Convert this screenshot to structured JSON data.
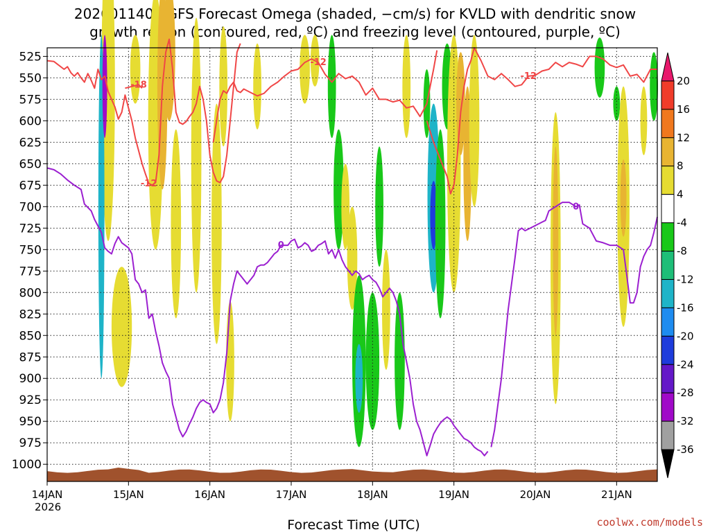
{
  "chart_data": {
    "type": "time-height cross section",
    "title_line1": "2026011400 GFS Forecast Omega (shaded, −cm/s) for KVLD with dendritic snow",
    "title_line2": "growth region (contoured, red, ºC) and freezing level (contoured, purple, ºC)",
    "xlabel": "Forecast Time (UTC)",
    "xlabel_year": "2026",
    "credit": "coolwx.com/models",
    "x_range_hours": [
      0,
      180
    ],
    "x_ticks": [
      {
        "label": "14JAN",
        "hour": 0
      },
      {
        "label": "15JAN",
        "hour": 24
      },
      {
        "label": "16JAN",
        "hour": 48
      },
      {
        "label": "17JAN",
        "hour": 72
      },
      {
        "label": "18JAN",
        "hour": 96
      },
      {
        "label": "19JAN",
        "hour": 120
      },
      {
        "label": "20JAN",
        "hour": 144
      },
      {
        "label": "21JAN",
        "hour": 168
      }
    ],
    "y_axis_hpa": {
      "top": 515,
      "bottom": 1020,
      "ticks": [
        "525",
        "550",
        "575",
        "600",
        "625",
        "650",
        "675",
        "700",
        "725",
        "750",
        "775",
        "800",
        "825",
        "850",
        "875",
        "900",
        "925",
        "950",
        "975",
        "1000"
      ]
    },
    "colorbar": {
      "labels": [
        "20",
        "16",
        "12",
        "8",
        "4",
        "-4",
        "-8",
        "-12",
        "-16",
        "-20",
        "-24",
        "-28",
        "-32",
        "-36"
      ],
      "colors": [
        "#e8196c",
        "#f03c2a",
        "#f0781e",
        "#e8b432",
        "#e6dc32",
        "#ffffff",
        "#19c819",
        "#1ebe78",
        "#1eb4c8",
        "#1e8cf0",
        "#1e3cdc",
        "#6418c8",
        "#a00ac8",
        "#a0a0a0",
        "#000000"
      ]
    },
    "series": [
      {
        "name": "dendritic growth -12C isotherm",
        "color": "#f04646",
        "label": "-12",
        "points": [
          [
            0,
            530
          ],
          [
            2,
            531
          ],
          [
            3,
            534
          ],
          [
            5,
            540
          ],
          [
            6,
            537
          ],
          [
            7,
            544
          ],
          [
            8,
            548
          ],
          [
            9,
            544
          ],
          [
            10,
            550
          ],
          [
            11,
            555
          ],
          [
            12,
            545
          ],
          [
            13,
            553
          ],
          [
            14,
            562
          ],
          [
            15,
            540
          ],
          [
            16,
            552
          ],
          [
            17,
            548
          ],
          [
            18,
            566
          ],
          [
            19,
            575
          ],
          [
            20,
            584
          ],
          [
            21,
            598
          ],
          [
            22,
            590
          ],
          [
            23,
            570
          ],
          [
            24,
            585
          ],
          [
            25,
            600
          ],
          [
            26,
            620
          ],
          [
            27,
            635
          ],
          [
            28,
            650
          ],
          [
            29,
            662
          ],
          [
            30,
            673
          ],
          [
            31,
            675
          ],
          [
            32,
            672
          ],
          [
            33,
            640
          ],
          [
            34,
            560
          ],
          [
            35,
            520
          ],
          [
            36,
            505
          ],
          [
            37,
            540
          ],
          [
            38,
            590
          ],
          [
            39,
            602
          ],
          [
            40,
            604
          ],
          [
            41,
            601
          ],
          [
            42,
            595
          ],
          [
            43,
            590
          ],
          [
            44,
            580
          ],
          [
            45,
            560
          ],
          [
            46,
            575
          ],
          [
            47,
            600
          ],
          [
            48,
            640
          ],
          [
            49,
            660
          ],
          [
            50,
            670
          ],
          [
            51,
            672
          ],
          [
            52,
            665
          ],
          [
            53,
            640
          ],
          [
            54,
            600
          ],
          [
            55,
            560
          ],
          [
            56,
            520
          ],
          [
            57,
            510
          ]
        ]
      },
      {
        "name": "-12C isotherm continuation",
        "color": "#f04646",
        "label": "-12",
        "points": [
          [
            49,
            625
          ],
          [
            50,
            600
          ],
          [
            51,
            575
          ],
          [
            52,
            565
          ],
          [
            53,
            568
          ],
          [
            54,
            560
          ],
          [
            55,
            555
          ],
          [
            56,
            565
          ],
          [
            57,
            567
          ],
          [
            58,
            563
          ],
          [
            60,
            567
          ],
          [
            62,
            571
          ],
          [
            64,
            568
          ],
          [
            66,
            560
          ],
          [
            68,
            555
          ],
          [
            70,
            548
          ],
          [
            72,
            542
          ],
          [
            74,
            540
          ],
          [
            76,
            532
          ],
          [
            78,
            528
          ],
          [
            80,
            532
          ],
          [
            82,
            546
          ],
          [
            84,
            555
          ],
          [
            86,
            545
          ],
          [
            88,
            551
          ],
          [
            90,
            548
          ],
          [
            92,
            555
          ],
          [
            94,
            570
          ],
          [
            96,
            562
          ],
          [
            98,
            575
          ],
          [
            100,
            575
          ],
          [
            102,
            578
          ],
          [
            104,
            576
          ],
          [
            106,
            585
          ],
          [
            108,
            583
          ],
          [
            110,
            595
          ],
          [
            112,
            580
          ],
          [
            113,
            560
          ],
          [
            114,
            540
          ],
          [
            115,
            518
          ]
        ]
      },
      {
        "name": "-12C isotherm east",
        "color": "#f04646",
        "label": "-12",
        "points": [
          [
            112,
            600
          ],
          [
            114,
            625
          ],
          [
            116,
            645
          ],
          [
            118,
            665
          ],
          [
            119,
            685
          ],
          [
            120,
            675
          ],
          [
            121,
            640
          ],
          [
            122,
            590
          ],
          [
            123,
            560
          ],
          [
            124,
            540
          ],
          [
            125,
            530
          ],
          [
            126,
            515
          ],
          [
            128,
            530
          ],
          [
            130,
            548
          ],
          [
            132,
            552
          ],
          [
            134,
            545
          ],
          [
            136,
            552
          ],
          [
            138,
            560
          ],
          [
            140,
            558
          ],
          [
            142,
            548
          ],
          [
            144,
            547
          ],
          [
            146,
            542
          ],
          [
            148,
            540
          ],
          [
            150,
            532
          ],
          [
            152,
            537
          ],
          [
            154,
            532
          ],
          [
            156,
            534
          ],
          [
            158,
            537
          ],
          [
            160,
            525
          ],
          [
            162,
            525
          ],
          [
            164,
            528
          ],
          [
            166,
            535
          ],
          [
            168,
            538
          ],
          [
            170,
            535
          ],
          [
            172,
            548
          ],
          [
            174,
            546
          ],
          [
            176,
            555
          ],
          [
            178,
            540
          ],
          [
            180,
            540
          ]
        ]
      },
      {
        "name": "-18C isotherm",
        "color": "#f04646",
        "label": "-18",
        "points": [
          [
            23,
            562
          ],
          [
            25,
            560
          ],
          [
            27,
            558
          ],
          [
            28,
            562
          ]
        ]
      },
      {
        "name": "freezing level 0C",
        "color": "#9b1fd0",
        "label": "0",
        "points": [
          [
            0,
            655
          ],
          [
            2,
            657
          ],
          [
            4,
            662
          ],
          [
            6,
            669
          ],
          [
            8,
            675
          ],
          [
            10,
            680
          ],
          [
            11,
            697
          ],
          [
            13,
            705
          ],
          [
            14,
            715
          ],
          [
            16,
            730
          ],
          [
            17,
            748
          ],
          [
            18,
            752
          ],
          [
            19,
            755
          ],
          [
            20,
            743
          ],
          [
            21,
            735
          ],
          [
            22,
            742
          ],
          [
            23,
            745
          ],
          [
            24,
            748
          ],
          [
            25,
            755
          ],
          [
            26,
            785
          ],
          [
            27,
            790
          ],
          [
            28,
            800
          ],
          [
            29,
            797
          ],
          [
            30,
            830
          ],
          [
            31,
            825
          ],
          [
            32,
            845
          ],
          [
            33,
            862
          ],
          [
            34,
            882
          ],
          [
            35,
            892
          ],
          [
            36,
            900
          ],
          [
            37,
            930
          ],
          [
            38,
            945
          ],
          [
            39,
            960
          ],
          [
            40,
            968
          ],
          [
            41,
            962
          ],
          [
            42,
            953
          ],
          [
            43,
            945
          ],
          [
            44,
            935
          ],
          [
            45,
            928
          ],
          [
            46,
            925
          ],
          [
            47,
            928
          ],
          [
            48,
            930
          ],
          [
            49,
            940
          ],
          [
            50,
            935
          ],
          [
            51,
            925
          ],
          [
            52,
            905
          ],
          [
            53,
            870
          ],
          [
            54,
            810
          ],
          [
            55,
            790
          ],
          [
            56,
            775
          ],
          [
            57,
            780
          ],
          [
            58,
            785
          ],
          [
            59,
            790
          ],
          [
            60,
            785
          ],
          [
            61,
            780
          ],
          [
            62,
            770
          ],
          [
            63,
            768
          ],
          [
            64,
            768
          ],
          [
            65,
            765
          ],
          [
            66,
            760
          ],
          [
            67,
            755
          ],
          [
            68,
            752
          ],
          [
            69,
            745
          ],
          [
            70,
            745
          ],
          [
            71,
            745
          ],
          [
            72,
            740
          ],
          [
            73,
            738
          ],
          [
            74,
            748
          ],
          [
            75,
            746
          ],
          [
            76,
            742
          ],
          [
            77,
            745
          ],
          [
            78,
            752
          ],
          [
            79,
            750
          ],
          [
            80,
            745
          ],
          [
            81,
            743
          ],
          [
            82,
            740
          ],
          [
            83,
            755
          ],
          [
            84,
            750
          ],
          [
            85,
            760
          ],
          [
            86,
            750
          ],
          [
            87,
            762
          ],
          [
            88,
            770
          ],
          [
            89,
            775
          ],
          [
            90,
            780
          ],
          [
            91,
            775
          ],
          [
            92,
            778
          ],
          [
            93,
            785
          ],
          [
            94,
            782
          ],
          [
            95,
            780
          ],
          [
            96,
            785
          ],
          [
            97,
            788
          ],
          [
            98,
            795
          ],
          [
            99,
            805
          ],
          [
            100,
            800
          ],
          [
            101,
            795
          ],
          [
            102,
            800
          ],
          [
            103,
            810
          ],
          [
            104,
            825
          ],
          [
            105,
            860
          ],
          [
            106,
            880
          ],
          [
            107,
            900
          ],
          [
            108,
            930
          ],
          [
            109,
            950
          ],
          [
            110,
            960
          ],
          [
            111,
            975
          ],
          [
            112,
            990
          ],
          [
            113,
            978
          ],
          [
            114,
            965
          ],
          [
            115,
            958
          ],
          [
            116,
            952
          ],
          [
            117,
            948
          ],
          [
            118,
            945
          ],
          [
            119,
            948
          ],
          [
            120,
            955
          ],
          [
            121,
            960
          ],
          [
            122,
            965
          ],
          [
            123,
            970
          ],
          [
            124,
            972
          ],
          [
            125,
            975
          ],
          [
            126,
            980
          ],
          [
            127,
            983
          ],
          [
            128,
            985
          ],
          [
            129,
            990
          ],
          [
            130,
            985
          ]
        ]
      },
      {
        "name": "freezing level 0C east",
        "color": "#9b1fd0",
        "label": "0",
        "points": [
          [
            131,
            980
          ],
          [
            132,
            960
          ],
          [
            133,
            930
          ],
          [
            134,
            900
          ],
          [
            135,
            860
          ],
          [
            136,
            820
          ],
          [
            137,
            790
          ],
          [
            138,
            760
          ],
          [
            139,
            728
          ],
          [
            140,
            725
          ],
          [
            141,
            728
          ],
          [
            142,
            726
          ],
          [
            144,
            722
          ],
          [
            146,
            718
          ],
          [
            147,
            716
          ],
          [
            148,
            705
          ],
          [
            150,
            700
          ],
          [
            152,
            695
          ],
          [
            154,
            695
          ],
          [
            156,
            700
          ],
          [
            157,
            698
          ],
          [
            158,
            720
          ],
          [
            160,
            725
          ],
          [
            162,
            740
          ],
          [
            164,
            742
          ],
          [
            166,
            745
          ],
          [
            168,
            745
          ],
          [
            170,
            750
          ],
          [
            171,
            780
          ],
          [
            172,
            812
          ],
          [
            173,
            812
          ],
          [
            174,
            800
          ],
          [
            175,
            770
          ],
          [
            176,
            758
          ],
          [
            177,
            750
          ],
          [
            178,
            745
          ],
          [
            179,
            730
          ],
          [
            180,
            712
          ]
        ]
      }
    ]
  }
}
